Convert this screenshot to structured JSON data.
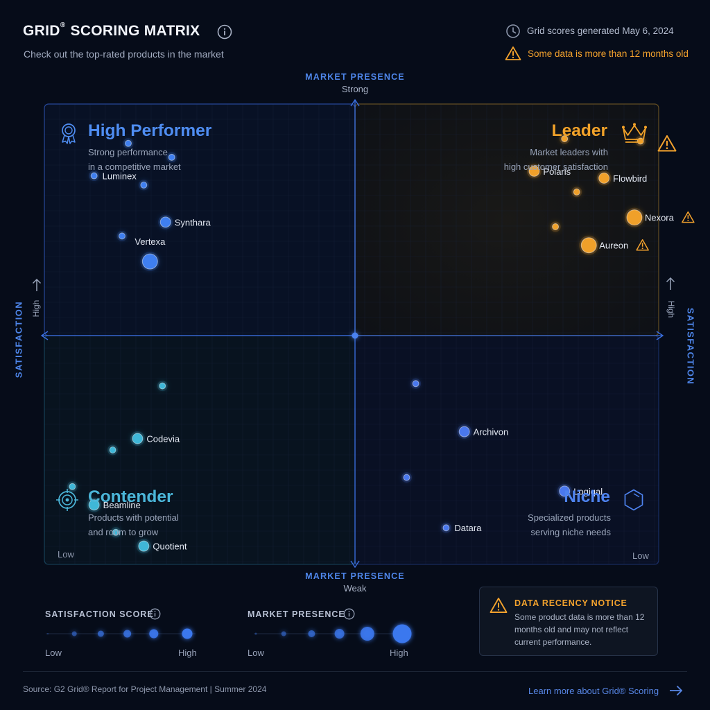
{
  "header": {
    "title": "GRID",
    "title_mark": "®",
    "title_rest": " SCORING MATRIX",
    "subtitle": "Check out the top-rated products in the market",
    "generated": "Grid scores generated May 6, 2024",
    "staleness_warning": "Some data is more than 12 months old"
  },
  "axes": {
    "x_title": "MARKET PRESENCE",
    "x_high": "Strong",
    "x_low": "Weak",
    "y_title": "SATISFACTION",
    "y_high": "High",
    "corner_low": "Low"
  },
  "quadrants": {
    "high_performer": {
      "title": "High Performer",
      "desc_1": "Strong performance",
      "desc_2": "in a competitive market",
      "color": "#4f8df2"
    },
    "leader": {
      "title": "Leader",
      "desc_1": "Market leaders with",
      "desc_2": "high customer satisfaction",
      "color": "#f2a229"
    },
    "contender": {
      "title": "Contender",
      "desc_1": "Products with potential",
      "desc_2": "and room to grow",
      "color": "#4bb6d9"
    },
    "niche": {
      "title": "Niche",
      "desc_1": "Specialized products",
      "desc_2": "serving niche needs",
      "color": "#4e83f0"
    }
  },
  "chart_data": {
    "type": "scatter",
    "title": "GRID® SCORING MATRIX",
    "xlabel": "MARKET PRESENCE",
    "ylabel": "SATISFACTION",
    "xlim": [
      0,
      100
    ],
    "ylim": [
      0,
      100
    ],
    "grid": true,
    "quadrant_split": [
      50,
      50
    ],
    "series": [
      {
        "name": "High Performer",
        "color": "#3f7ff0",
        "points": [
          {
            "label": "Vertexa",
            "x": 34,
            "y": 68,
            "size": 3
          },
          {
            "label": "",
            "x": 25,
            "y": 57,
            "size": 1
          },
          {
            "label": "Synthara",
            "x": 39,
            "y": 51,
            "size": 2
          },
          {
            "label": "",
            "x": 32,
            "y": 35,
            "size": 1
          },
          {
            "label": "Luminex",
            "x": 16,
            "y": 31,
            "size": 1
          },
          {
            "label": "",
            "x": 41,
            "y": 23,
            "size": 1
          },
          {
            "label": "",
            "x": 27,
            "y": 17,
            "size": 1
          }
        ]
      },
      {
        "name": "Leader",
        "color": "#f0a02a",
        "points": [
          {
            "label": "Aureon",
            "x": 77,
            "y": 61,
            "size": 3,
            "stale": true
          },
          {
            "label": "",
            "x": 66,
            "y": 53,
            "size": 1
          },
          {
            "label": "Nexora",
            "x": 92,
            "y": 49,
            "size": 3,
            "stale": true
          },
          {
            "label": "",
            "x": 73,
            "y": 38,
            "size": 1
          },
          {
            "label": "Flowbird",
            "x": 82,
            "y": 32,
            "size": 2
          },
          {
            "label": "Polaris",
            "x": 59,
            "y": 29,
            "size": 2
          },
          {
            "label": "",
            "x": 69,
            "y": 15,
            "size": 1
          },
          {
            "label": "",
            "x": 94,
            "y": 16,
            "size": 1
          }
        ]
      },
      {
        "name": "Contender",
        "color": "#3fb7d8",
        "points": [
          {
            "label": "Quotient",
            "x": 32,
            "y": 92,
            "size": 2
          },
          {
            "label": "",
            "x": 23,
            "y": 86,
            "size": 1
          },
          {
            "label": "Beamline",
            "x": 16,
            "y": 74,
            "size": 2
          },
          {
            "label": "",
            "x": 9,
            "y": 66,
            "size": 1
          },
          {
            "label": "",
            "x": 22,
            "y": 50,
            "size": 1
          },
          {
            "label": "Codevia",
            "x": 30,
            "y": 45,
            "size": 2
          },
          {
            "label": "",
            "x": 38,
            "y": 22,
            "size": 1
          }
        ]
      },
      {
        "name": "Niche",
        "color": "#4a78ee",
        "points": [
          {
            "label": "Datara",
            "x": 30,
            "y": 84,
            "size": 1
          },
          {
            "label": "",
            "x": 17,
            "y": 62,
            "size": 1
          },
          {
            "label": "Logiqal",
            "x": 69,
            "y": 68,
            "size": 2
          },
          {
            "label": "Archivon",
            "x": 36,
            "y": 42,
            "size": 2
          },
          {
            "label": "",
            "x": 20,
            "y": 21,
            "size": 1
          }
        ]
      }
    ]
  },
  "legend": {
    "satisfaction_title": "SATISFACTION SCORE",
    "presence_title": "MARKET PRESENCE",
    "low": "Low",
    "high": "High"
  },
  "notice": {
    "title": "DATA RECENCY NOTICE",
    "body": "Some product data is more than 12 months old and may not reflect current performance."
  },
  "footer": {
    "source": "Source: G2 Grid® Report for Project Management  |  Summer 2024",
    "learn_more": "Learn more about Grid® Scoring"
  },
  "icons": {
    "info": "info-icon",
    "clock": "clock-icon",
    "warning": "warning-icon",
    "ribbon": "award-ribbon-icon",
    "crown": "crown-icon",
    "target": "target-icon",
    "hexagon": "hexagon-icon",
    "arrow": "arrow-right-icon"
  },
  "colors": {
    "accent": "#4e86ea",
    "warning": "#f3a22d",
    "background": "#060c19"
  }
}
